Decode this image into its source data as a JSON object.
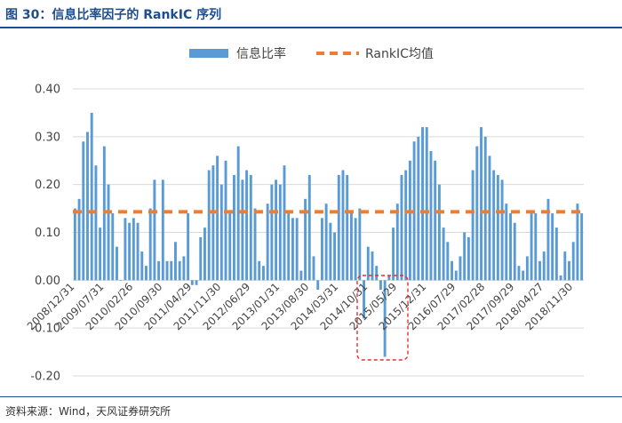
{
  "header": {
    "title": "图 30：信息比率因子的 RankIC 序列"
  },
  "footer": {
    "source": "资料来源：Wind，天风证券研究所"
  },
  "colors": {
    "bar": "#5b9bd5",
    "mean_line": "#ed7d31",
    "frame": "#1f4e8c",
    "highlight": "#e03030"
  },
  "chart_data": {
    "type": "bar",
    "title": "",
    "xlabel": "",
    "ylabel": "",
    "ylim": [
      -0.2,
      0.4
    ],
    "yticks": [
      "0.40",
      "0.30",
      "0.20",
      "0.10",
      "0.00",
      "-0.10",
      "-0.20"
    ],
    "ytick_values": [
      0.4,
      0.3,
      0.2,
      0.1,
      0.0,
      -0.1,
      -0.2
    ],
    "grid": true,
    "legend_position": "top",
    "series": [
      {
        "name": "信息比率",
        "kind": "bar"
      },
      {
        "name": "RankIC均值",
        "kind": "dashed-line",
        "value": 0.143
      }
    ],
    "xtick_labels": [
      "2008/12/31",
      "2009/07/31",
      "2010/02/26",
      "2010/09/30",
      "2011/04/29",
      "2011/11/30",
      "2012/06/29",
      "2013/01/31",
      "2013/08/30",
      "2014/03/31",
      "2014/10/31",
      "2015/05/29",
      "2015/12/31",
      "2016/07/29",
      "2017/02/28",
      "2017/09/29",
      "2018/04/27",
      "2018/11/30"
    ],
    "xtick_start_index": 0,
    "xtick_step": 7,
    "values": [
      0.15,
      0.17,
      0.29,
      0.31,
      0.35,
      0.24,
      0.11,
      0.28,
      0.2,
      0.14,
      0.07,
      0.0,
      0.13,
      0.12,
      0.13,
      0.12,
      0.06,
      0.03,
      0.15,
      0.21,
      0.04,
      0.21,
      0.04,
      0.04,
      0.08,
      0.04,
      0.05,
      0.14,
      -0.01,
      -0.01,
      0.09,
      0.11,
      0.23,
      0.24,
      0.26,
      0.2,
      0.25,
      0.14,
      0.22,
      0.28,
      0.21,
      0.23,
      0.22,
      0.15,
      0.04,
      0.03,
      0.16,
      0.2,
      0.21,
      0.2,
      0.24,
      0.14,
      0.13,
      0.13,
      0.02,
      0.17,
      0.22,
      0.05,
      -0.02,
      0.13,
      0.16,
      0.12,
      0.1,
      0.22,
      0.23,
      0.22,
      0.14,
      0.13,
      0.15,
      -0.08,
      0.07,
      0.06,
      0.03,
      -0.02,
      -0.16,
      0.01,
      0.11,
      0.16,
      0.22,
      0.23,
      0.25,
      0.29,
      0.3,
      0.32,
      0.32,
      0.27,
      0.25,
      0.2,
      0.11,
      0.08,
      0.04,
      0.02,
      0.05,
      0.1,
      0.09,
      0.23,
      0.28,
      0.32,
      0.3,
      0.26,
      0.23,
      0.22,
      0.21,
      0.16,
      0.14,
      0.12,
      0.03,
      0.02,
      0.05,
      0.14,
      0.14,
      0.04,
      0.06,
      0.17,
      0.14,
      0.11,
      0.01,
      0.06,
      0.04,
      0.08,
      0.16,
      0.14
    ]
  }
}
